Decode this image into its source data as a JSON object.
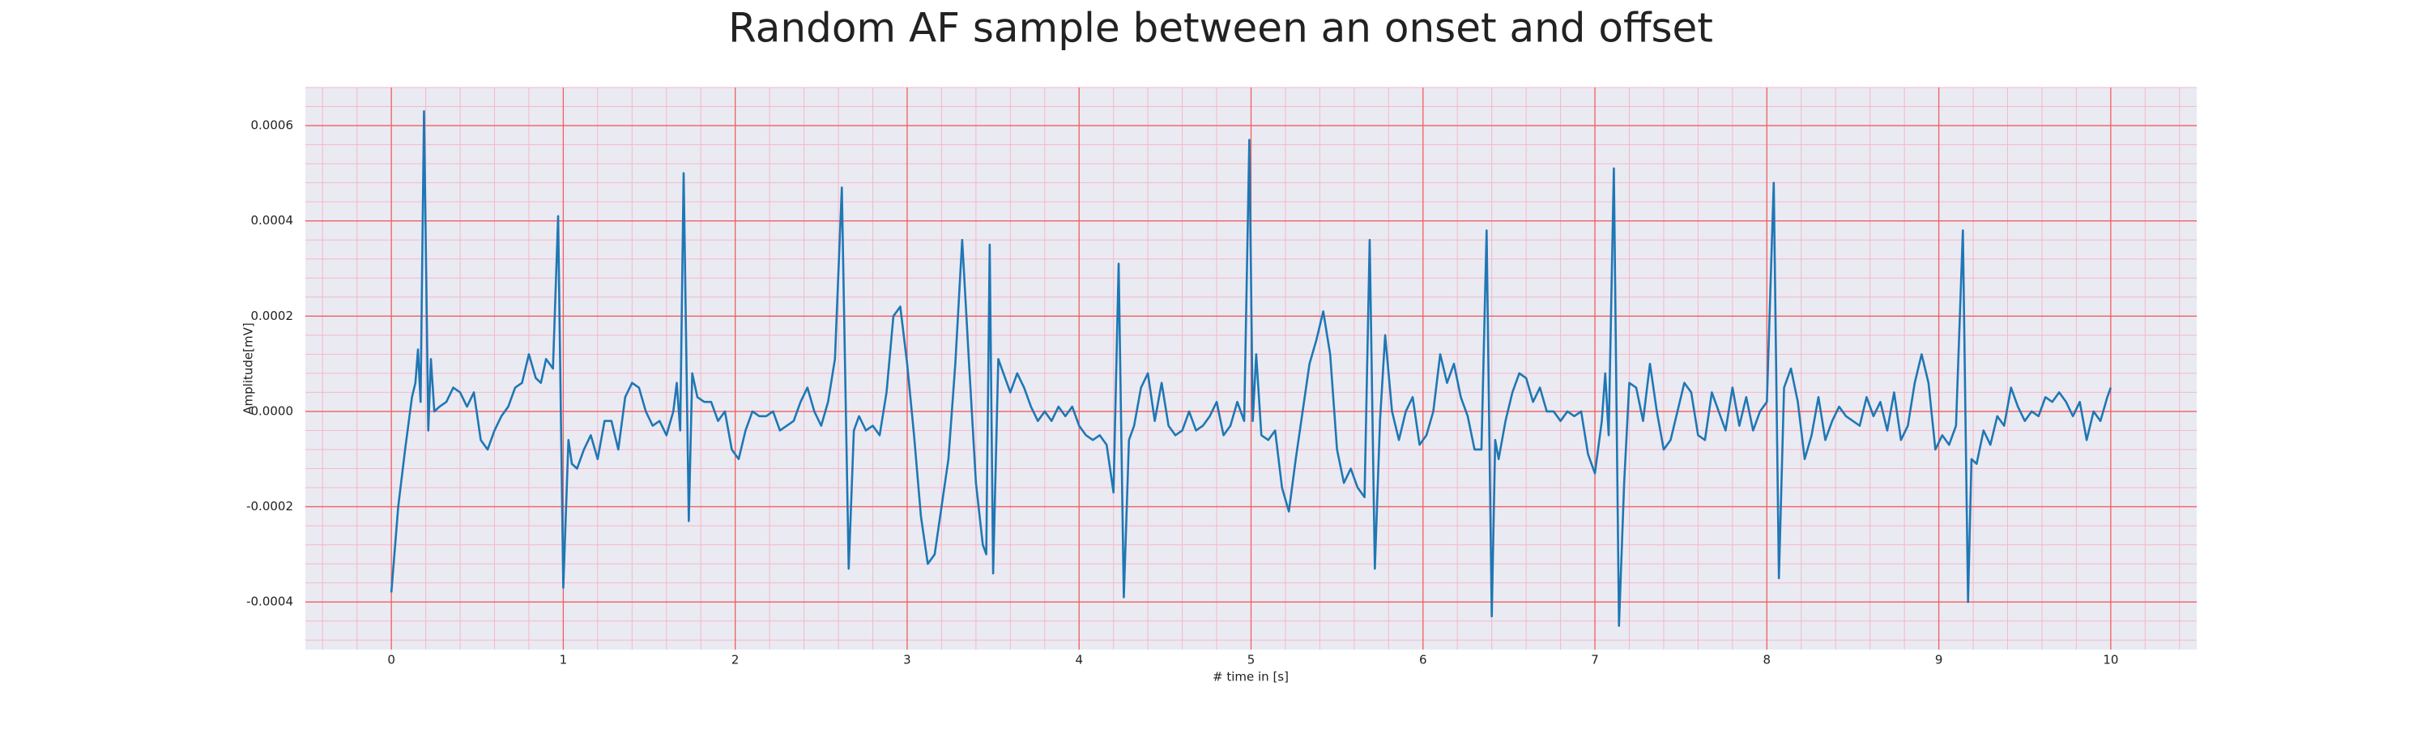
{
  "chart_data": {
    "type": "line",
    "title": "Random AF sample between an onset and offset",
    "xlabel": "# time in [s]",
    "ylabel": "Amplitude[mV]",
    "xlim": [
      -0.5,
      10.5
    ],
    "ylim": [
      -0.0005,
      0.00068
    ],
    "xticks": [
      0,
      1,
      2,
      3,
      4,
      5,
      6,
      7,
      8,
      9,
      10
    ],
    "yticks": [
      -0.0004,
      -0.0002,
      {
        "value": 0,
        "label": "0.0000"
      },
      0.0002,
      0.0004,
      0.0006
    ],
    "grid": true,
    "grid_color": "#f06060",
    "minor_grid": true,
    "minor_divisions": 5,
    "minor_grid_color": "#f5b8c8",
    "background": "#eaeaf2",
    "series": [
      {
        "color": "#1f77b4",
        "x": [
          0,
          0.04,
          0.08,
          0.12,
          0.14,
          0.155,
          0.17,
          0.19,
          0.215,
          0.23,
          0.25,
          0.28,
          0.32,
          0.36,
          0.4,
          0.44,
          0.48,
          0.52,
          0.56,
          0.6,
          0.64,
          0.68,
          0.72,
          0.76,
          0.8,
          0.84,
          0.87,
          0.9,
          0.94,
          0.97,
          1,
          1.03,
          1.05,
          1.08,
          1.12,
          1.16,
          1.2,
          1.24,
          1.28,
          1.32,
          1.36,
          1.4,
          1.44,
          1.48,
          1.52,
          1.56,
          1.6,
          1.64,
          1.66,
          1.68,
          1.7,
          1.73,
          1.75,
          1.78,
          1.82,
          1.86,
          1.9,
          1.94,
          1.98,
          2.02,
          2.06,
          2.1,
          2.14,
          2.18,
          2.22,
          2.26,
          2.3,
          2.34,
          2.38,
          2.42,
          2.46,
          2.5,
          2.54,
          2.58,
          2.62,
          2.66,
          2.69,
          2.72,
          2.76,
          2.8,
          2.84,
          2.88,
          2.92,
          2.96,
          3,
          3.04,
          3.08,
          3.12,
          3.16,
          3.2,
          3.24,
          3.28,
          3.32,
          3.36,
          3.4,
          3.44,
          3.46,
          3.48,
          3.5,
          3.53,
          3.56,
          3.6,
          3.64,
          3.68,
          3.72,
          3.76,
          3.8,
          3.84,
          3.88,
          3.92,
          3.96,
          4,
          4.04,
          4.08,
          4.12,
          4.16,
          4.2,
          4.23,
          4.26,
          4.29,
          4.32,
          4.36,
          4.4,
          4.44,
          4.48,
          4.52,
          4.56,
          4.6,
          4.64,
          4.68,
          4.72,
          4.76,
          4.8,
          4.84,
          4.88,
          4.92,
          4.96,
          4.99,
          5.01,
          5.03,
          5.06,
          5.1,
          5.14,
          5.18,
          5.22,
          5.26,
          5.3,
          5.34,
          5.38,
          5.42,
          5.46,
          5.5,
          5.54,
          5.58,
          5.62,
          5.66,
          5.69,
          5.72,
          5.75,
          5.78,
          5.82,
          5.86,
          5.9,
          5.94,
          5.98,
          6.02,
          6.06,
          6.1,
          6.14,
          6.18,
          6.22,
          6.26,
          6.3,
          6.34,
          6.37,
          6.4,
          6.42,
          6.44,
          6.48,
          6.52,
          6.56,
          6.6,
          6.64,
          6.68,
          6.72,
          6.76,
          6.8,
          6.84,
          6.88,
          6.92,
          6.96,
          7,
          7.04,
          7.06,
          7.08,
          7.11,
          7.14,
          7.17,
          7.2,
          7.24,
          7.28,
          7.32,
          7.36,
          7.4,
          7.44,
          7.48,
          7.52,
          7.56,
          7.6,
          7.64,
          7.68,
          7.72,
          7.76,
          7.8,
          7.84,
          7.88,
          7.92,
          7.96,
          8,
          8.04,
          8.07,
          8.1,
          8.14,
          8.18,
          8.22,
          8.26,
          8.3,
          8.34,
          8.38,
          8.42,
          8.46,
          8.5,
          8.54,
          8.58,
          8.62,
          8.66,
          8.7,
          8.74,
          8.78,
          8.82,
          8.86,
          8.9,
          8.94,
          8.98,
          9.02,
          9.06,
          9.1,
          9.14,
          9.17,
          9.19,
          9.22,
          9.26,
          9.3,
          9.34,
          9.38,
          9.42,
          9.46,
          9.5,
          9.54,
          9.58,
          9.62,
          9.66,
          9.7,
          9.74,
          9.78,
          9.82,
          9.86,
          9.9,
          9.94,
          9.98,
          10
        ],
        "values": [
          -0.00038,
          -0.0002,
          -8e-05,
          3e-05,
          6e-05,
          0.00013,
          2e-05,
          0.00063,
          -4e-05,
          0.00011,
          0,
          1e-05,
          2e-05,
          5e-05,
          4e-05,
          1e-05,
          4e-05,
          -6e-05,
          -8e-05,
          -4e-05,
          -1e-05,
          1e-05,
          5e-05,
          6e-05,
          0.00012,
          7e-05,
          6e-05,
          0.00011,
          9e-05,
          0.00041,
          -0.00037,
          -6e-05,
          -0.00011,
          -0.00012,
          -8e-05,
          -5e-05,
          -0.0001,
          -2e-05,
          -2e-05,
          -8e-05,
          3e-05,
          6e-05,
          5e-05,
          0,
          -3e-05,
          -2e-05,
          -5e-05,
          0,
          6e-05,
          -4e-05,
          0.0005,
          -0.00023,
          8e-05,
          3e-05,
          2e-05,
          2e-05,
          -2e-05,
          0,
          -8e-05,
          -0.0001,
          -4e-05,
          0,
          -1e-05,
          -1e-05,
          0,
          -4e-05,
          -3e-05,
          -2e-05,
          2e-05,
          5e-05,
          0,
          -3e-05,
          2e-05,
          0.00011,
          0.00047,
          -0.00033,
          -4e-05,
          -1e-05,
          -4e-05,
          -3e-05,
          -5e-05,
          4e-05,
          0.0002,
          0.00022,
          0.0001,
          -5e-05,
          -0.00022,
          -0.00032,
          -0.0003,
          -0.0002,
          -0.0001,
          0.0001,
          0.00036,
          0.0001,
          -0.00015,
          -0.00028,
          -0.0003,
          0.00035,
          -0.00034,
          0.00011,
          8e-05,
          4e-05,
          8e-05,
          5e-05,
          1e-05,
          -2e-05,
          0,
          -2e-05,
          1e-05,
          -1e-05,
          1e-05,
          -3e-05,
          -5e-05,
          -6e-05,
          -5e-05,
          -7e-05,
          -0.00017,
          0.00031,
          -0.00039,
          -6e-05,
          -3e-05,
          5e-05,
          8e-05,
          -2e-05,
          6e-05,
          -3e-05,
          -5e-05,
          -4e-05,
          0,
          -4e-05,
          -3e-05,
          -1e-05,
          2e-05,
          -5e-05,
          -3e-05,
          2e-05,
          -2e-05,
          0.00057,
          -2e-05,
          0.00012,
          -5e-05,
          -6e-05,
          -4e-05,
          -0.00016,
          -0.00021,
          -0.0001,
          0,
          0.0001,
          0.00015,
          0.00021,
          0.00012,
          -8e-05,
          -0.00015,
          -0.00012,
          -0.00016,
          -0.00018,
          0.00036,
          -0.00033,
          -2e-05,
          0.00016,
          0,
          -6e-05,
          0,
          3e-05,
          -7e-05,
          -5e-05,
          0,
          0.00012,
          6e-05,
          0.0001,
          3e-05,
          -1e-05,
          -8e-05,
          -8e-05,
          0.00038,
          -0.00043,
          -6e-05,
          -0.0001,
          -2e-05,
          4e-05,
          8e-05,
          7e-05,
          2e-05,
          5e-05,
          0,
          0,
          -2e-05,
          0,
          -1e-05,
          0,
          -9e-05,
          -0.00013,
          -2e-05,
          8e-05,
          -5e-05,
          0.00051,
          -0.00045,
          -0.00015,
          6e-05,
          5e-05,
          -2e-05,
          0.0001,
          0,
          -8e-05,
          -6e-05,
          0,
          6e-05,
          4e-05,
          -5e-05,
          -6e-05,
          4e-05,
          0,
          -4e-05,
          5e-05,
          -3e-05,
          3e-05,
          -4e-05,
          0,
          2e-05,
          0.00048,
          -0.00035,
          5e-05,
          9e-05,
          2e-05,
          -0.0001,
          -5e-05,
          3e-05,
          -6e-05,
          -2e-05,
          1e-05,
          -1e-05,
          -2e-05,
          -3e-05,
          3e-05,
          -1e-05,
          2e-05,
          -4e-05,
          4e-05,
          -6e-05,
          -3e-05,
          6e-05,
          0.00012,
          6e-05,
          -8e-05,
          -5e-05,
          -7e-05,
          -3e-05,
          0.00038,
          -0.0004,
          -0.0001,
          -0.00011,
          -4e-05,
          -7e-05,
          -1e-05,
          -3e-05,
          5e-05,
          1e-05,
          -2e-05,
          0,
          -1e-05,
          3e-05,
          2e-05,
          4e-05,
          2e-05,
          -1e-05,
          2e-05,
          -6e-05,
          0,
          -2e-05,
          3e-05,
          5e-05
        ]
      }
    ]
  }
}
